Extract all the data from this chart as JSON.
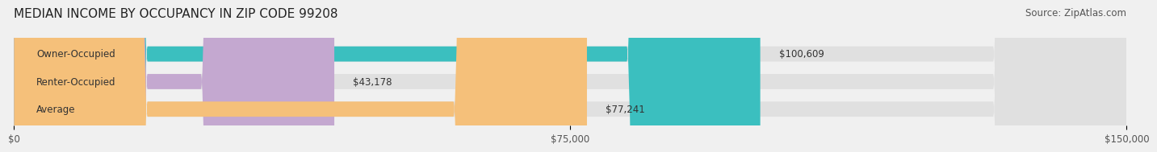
{
  "title": "MEDIAN INCOME BY OCCUPANCY IN ZIP CODE 99208",
  "source": "Source: ZipAtlas.com",
  "categories": [
    "Owner-Occupied",
    "Renter-Occupied",
    "Average"
  ],
  "values": [
    100609,
    43178,
    77241
  ],
  "labels": [
    "$100,609",
    "$43,178",
    "$77,241"
  ],
  "bar_colors": [
    "#3bbfbf",
    "#c4a8d0",
    "#f5c07a"
  ],
  "bar_edge_colors": [
    "#3bbfbf",
    "#c4a8d0",
    "#f5c07a"
  ],
  "background_color": "#f0f0f0",
  "bar_bg_color": "#e8e8e8",
  "xlim": [
    0,
    150000
  ],
  "xticks": [
    0,
    75000,
    150000
  ],
  "xticklabels": [
    "$0",
    "$75,000",
    "$150,000"
  ],
  "title_fontsize": 11,
  "label_fontsize": 8.5,
  "tick_fontsize": 8.5,
  "source_fontsize": 8.5
}
